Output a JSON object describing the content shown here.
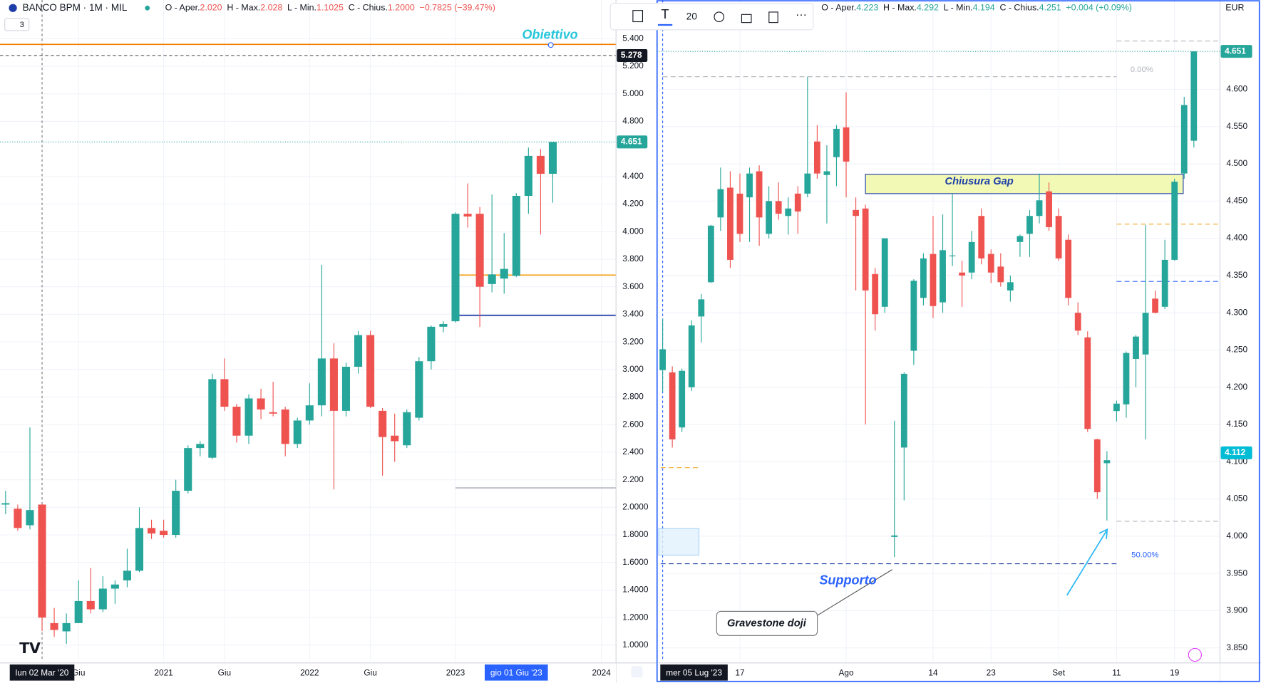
{
  "drawing_toolbar": {
    "size": "20"
  },
  "collapsed_indicators": "3",
  "chart_data": [
    {
      "type": "candlestick",
      "title": "BANCO BPM · 1M · MIL",
      "ohlc_legend": [
        {
          "label": "O - Aper.",
          "value": "2.020"
        },
        {
          "label": "H - Max.",
          "value": "2.028"
        },
        {
          "label": "L - Min.",
          "value": "1.1025"
        },
        {
          "label": "C - Chius.",
          "value": "1.2000"
        }
      ],
      "change": "−0.7825 (−39.47%)",
      "legend_color": "#ef5350",
      "up_color": "#26a69a",
      "down_color": "#ef5350",
      "open": [
        2.02,
        1.99,
        1.87,
        2.02,
        1.16,
        1.1,
        1.16,
        1.32,
        1.26,
        1.41,
        1.47,
        1.54,
        1.85,
        1.83,
        1.8,
        2.12,
        2.43,
        2.36,
        2.93,
        2.73,
        2.52,
        2.79,
        2.69,
        2.71,
        2.46,
        2.63,
        2.74,
        3.08,
        2.7,
        3.02,
        3.25,
        2.7,
        2.52,
        2.45,
        2.65,
        3.06,
        3.31,
        3.35,
        4.13,
        4.13,
        3.62,
        3.66,
        3.68,
        4.26,
        4.55,
        4.42
      ],
      "high": [
        2.12,
        2.02,
        2.58,
        2.028,
        1.27,
        1.23,
        1.47,
        1.56,
        1.5,
        1.47,
        1.7,
        2.0,
        1.91,
        1.91,
        2.2,
        2.45,
        2.48,
        2.97,
        3.08,
        2.75,
        2.82,
        2.86,
        2.91,
        2.73,
        2.65,
        2.9,
        3.76,
        3.19,
        3.05,
        3.28,
        3.28,
        2.72,
        2.68,
        2.71,
        3.09,
        3.32,
        3.35,
        4.14,
        4.35,
        4.18,
        4.27,
        3.99,
        4.28,
        4.61,
        4.6,
        4.651
      ],
      "low": [
        1.95,
        1.83,
        1.84,
        1.1025,
        1.06,
        1.01,
        1.16,
        1.23,
        1.24,
        1.3,
        1.42,
        1.53,
        1.77,
        1.78,
        1.78,
        2.1,
        2.37,
        2.35,
        2.7,
        2.47,
        2.46,
        2.64,
        2.66,
        2.37,
        2.43,
        2.6,
        2.66,
        2.13,
        2.66,
        2.97,
        2.72,
        2.23,
        2.33,
        2.43,
        2.63,
        3.0,
        3.27,
        3.34,
        4.03,
        3.31,
        3.56,
        3.55,
        3.67,
        4.13,
        3.98,
        4.21
      ],
      "close": [
        2.03,
        1.85,
        1.98,
        1.2,
        1.11,
        1.16,
        1.32,
        1.26,
        1.41,
        1.44,
        1.54,
        1.85,
        1.81,
        1.8,
        2.12,
        2.43,
        2.46,
        2.93,
        2.73,
        2.52,
        2.79,
        2.71,
        2.68,
        2.46,
        2.63,
        2.74,
        3.08,
        2.7,
        3.02,
        3.25,
        2.73,
        2.51,
        2.48,
        2.69,
        3.06,
        3.31,
        3.33,
        4.13,
        4.11,
        3.6,
        3.69,
        3.73,
        4.26,
        4.55,
        4.42,
        4.651
      ],
      "xlim": [
        -0.46,
        50.2
      ],
      "ylim": [
        0.883,
        5.681
      ],
      "yticks": [
        {
          "value": 5.4,
          "label": "5.400"
        },
        {
          "value": 5.2,
          "label": "5.200"
        },
        {
          "value": 5.0,
          "label": "5.000"
        },
        {
          "value": 4.8,
          "label": "4.800"
        },
        {
          "value": 4.4,
          "label": "4.400"
        },
        {
          "value": 4.2,
          "label": "4.200"
        },
        {
          "value": 4.0,
          "label": "4.000"
        },
        {
          "value": 3.8,
          "label": "3.800"
        },
        {
          "value": 3.6,
          "label": "3.600"
        },
        {
          "value": 3.4,
          "label": "3.400"
        },
        {
          "value": 3.2,
          "label": "3.200"
        },
        {
          "value": 3.0,
          "label": "3.000"
        },
        {
          "value": 2.8,
          "label": "2.800"
        },
        {
          "value": 2.6,
          "label": "2.600"
        },
        {
          "value": 2.4,
          "label": "2.400"
        },
        {
          "value": 2.2,
          "label": "2.200"
        },
        {
          "value": 2.0,
          "label": "2.0000"
        },
        {
          "value": 1.8,
          "label": "1.8000"
        },
        {
          "value": 1.6,
          "label": "1.6000"
        },
        {
          "value": 1.4,
          "label": "1.4000"
        },
        {
          "value": 1.2,
          "label": "1.2000"
        },
        {
          "value": 1.0,
          "label": "1.0000"
        }
      ],
      "xticks": [
        {
          "value": 6,
          "label": "Giu"
        },
        {
          "value": 13,
          "label": "2021"
        },
        {
          "value": 18,
          "label": "Giu"
        },
        {
          "value": 25,
          "label": "2022"
        },
        {
          "value": 30,
          "label": "Giu"
        },
        {
          "value": 37,
          "label": "2023"
        },
        {
          "value": 49,
          "label": "2024"
        }
      ],
      "marker_labels": [
        {
          "value": 3,
          "label": "lun 02 Mar '20",
          "color": "#131722"
        },
        {
          "value": 42,
          "label": "gio 01 Giu '23",
          "color": "#2962ff"
        }
      ],
      "crosshair": 3,
      "levels": [
        {
          "value": 5.359,
          "color": "#f57c00",
          "dash": "none"
        },
        {
          "value": 5.278,
          "color": "#555555",
          "dash": "4 3"
        },
        {
          "value": 4.651,
          "color": "#26a69a",
          "dash": "1 2"
        },
        {
          "value": 3.685,
          "color": "#f5a623",
          "dash": "none",
          "x0": 37.3
        },
        {
          "value": 3.393,
          "color": "#1e3fa8",
          "dash": "none",
          "x0": 37.3
        },
        {
          "value": 2.141,
          "color": "#b2b5be",
          "dash": "none",
          "x0": 37
        }
      ],
      "price_labels": [
        {
          "value": 5.278,
          "color": "#131722"
        },
        {
          "value": 4.651,
          "color": "#26a69a"
        }
      ],
      "annotations": {
        "target": "Obiettivo"
      }
    },
    {
      "type": "candlestick",
      "currency": "EUR",
      "ohlc_legend": [
        {
          "label": "O - Aper.",
          "value": "4.223"
        },
        {
          "label": "H - Max.",
          "value": "4.292"
        },
        {
          "label": "L - Min.",
          "value": "4.194"
        },
        {
          "label": "C - Chius.",
          "value": "4.251"
        }
      ],
      "change": "+0.004 (+0.09%)",
      "legend_color": "#26a69a",
      "up_color": "#26a69a",
      "down_color": "#ef5350",
      "open": [
        4.223,
        4.22,
        4.146,
        4.2,
        4.295,
        4.341,
        4.428,
        4.468,
        4.46,
        4.455,
        4.49,
        4.406,
        4.45,
        4.43,
        4.46,
        4.46,
        4.53,
        4.485,
        4.509,
        4.549,
        4.438,
        4.44,
        4.352,
        4.308,
        3.999,
        4.119,
        4.249,
        4.32,
        4.379,
        4.314,
        4.376,
        4.354,
        4.354,
        4.43,
        4.379,
        4.362,
        4.33,
        4.395,
        4.406,
        4.43,
        4.463,
        4.43,
        4.398,
        4.3,
        4.267,
        4.13,
        4.098,
        4.168,
        4.177,
        4.238,
        4.244,
        4.319,
        4.308,
        4.371,
        4.487,
        4.531
      ],
      "high": [
        4.292,
        4.228,
        4.225,
        4.29,
        4.325,
        4.418,
        4.495,
        4.49,
        4.487,
        4.495,
        4.498,
        4.47,
        4.475,
        4.455,
        4.47,
        4.617,
        4.552,
        4.525,
        4.552,
        4.596,
        4.455,
        4.445,
        4.36,
        4.4,
        4.155,
        4.22,
        4.345,
        4.38,
        4.43,
        4.432,
        4.46,
        4.37,
        4.41,
        4.44,
        4.385,
        4.38,
        4.35,
        4.405,
        4.438,
        4.487,
        4.475,
        4.44,
        4.405,
        4.314,
        4.275,
        4.131,
        4.114,
        4.182,
        4.248,
        4.27,
        4.418,
        4.33,
        4.398,
        4.48,
        4.59,
        4.651
      ],
      "low": [
        4.194,
        4.119,
        4.14,
        4.195,
        4.26,
        4.34,
        4.41,
        4.36,
        4.395,
        4.395,
        4.39,
        4.4,
        4.425,
        4.405,
        4.406,
        4.455,
        4.48,
        4.42,
        4.47,
        4.455,
        4.33,
        4.15,
        4.276,
        4.3,
        3.972,
        4.048,
        4.23,
        4.31,
        4.293,
        4.3,
        4.363,
        4.308,
        4.345,
        4.365,
        4.34,
        4.335,
        4.315,
        4.375,
        4.375,
        4.42,
        4.41,
        4.37,
        4.31,
        4.27,
        4.14,
        4.05,
        4.021,
        4.154,
        4.159,
        4.2,
        4.13,
        4.299,
        4.305,
        4.37,
        4.48,
        4.522
      ],
      "close": [
        4.251,
        4.13,
        4.222,
        4.283,
        4.318,
        4.417,
        4.466,
        4.371,
        4.406,
        4.487,
        4.428,
        4.45,
        4.433,
        4.44,
        4.436,
        4.487,
        4.487,
        4.49,
        4.547,
        4.503,
        4.43,
        4.33,
        4.298,
        4.4,
        4.001,
        4.218,
        4.343,
        4.373,
        4.309,
        4.384,
        4.377,
        4.35,
        4.395,
        4.373,
        4.354,
        4.341,
        4.341,
        4.403,
        4.43,
        4.451,
        4.415,
        4.373,
        4.32,
        4.276,
        4.144,
        4.059,
        4.102,
        4.178,
        4.246,
        4.268,
        4.3,
        4.3,
        4.371,
        4.476,
        4.579,
        4.651
      ],
      "xlim": [
        -0.41,
        57.7
      ],
      "ylim": [
        3.832,
        4.72
      ],
      "yticks": [
        {
          "value": 4.6,
          "label": "4.600"
        },
        {
          "value": 4.55,
          "label": "4.550"
        },
        {
          "value": 4.5,
          "label": "4.500"
        },
        {
          "value": 4.45,
          "label": "4.450"
        },
        {
          "value": 4.4,
          "label": "4.400"
        },
        {
          "value": 4.35,
          "label": "4.350"
        },
        {
          "value": 4.3,
          "label": "4.300"
        },
        {
          "value": 4.25,
          "label": "4.250"
        },
        {
          "value": 4.2,
          "label": "4.200"
        },
        {
          "value": 4.15,
          "label": "4.150"
        },
        {
          "value": 4.1,
          "label": "4.100"
        },
        {
          "value": 4.05,
          "label": "4.050"
        },
        {
          "value": 4.0,
          "label": "4.000"
        },
        {
          "value": 3.95,
          "label": "3.950"
        },
        {
          "value": 3.9,
          "label": "3.900"
        },
        {
          "value": 3.85,
          "label": "3.850"
        }
      ],
      "xticks": [
        {
          "value": 8,
          "label": "17"
        },
        {
          "value": 19,
          "label": "Ago"
        },
        {
          "value": 28,
          "label": "14"
        },
        {
          "value": 34,
          "label": "23"
        },
        {
          "value": 41,
          "label": "Set"
        },
        {
          "value": 47,
          "label": "11"
        },
        {
          "value": 53,
          "label": "19"
        }
      ],
      "marker_labels": [
        {
          "value": 0,
          "label": "mer 05 Lug '23",
          "color": "#131722"
        }
      ],
      "crosshair": 0,
      "levels": [
        {
          "value": 4.665,
          "color": "#b2b5be",
          "dash": "6 4",
          "x0": 47
        },
        {
          "value": 4.617,
          "color": "#b2b5be",
          "dash": "6 4",
          "x0": 0,
          "x1": 47
        },
        {
          "value": 4.02,
          "color": "#b2b5be",
          "dash": "6 4",
          "x0": 47
        },
        {
          "value": 4.419,
          "color": "#f5a623",
          "dash": "6 4",
          "x0": 47
        },
        {
          "value": 4.342,
          "color": "#2962ff",
          "dash": "6 4",
          "x0": 47
        },
        {
          "value": 3.963,
          "color": "#1e3fa8",
          "dash": "6 4",
          "x0": -0.2,
          "x1": 47
        },
        {
          "value": 4.092,
          "color": "#f5a623",
          "dash": "6 4",
          "x0": -0.2,
          "x1": 3.7
        },
        {
          "value": 4.651,
          "color": "#26a69a",
          "dash": "1 2"
        }
      ],
      "zones": [
        {
          "x0": 21,
          "x1": 53.9,
          "y0": 4.46,
          "y1": 4.486,
          "color": "#f0f8a8",
          "border": "#1e3fa8"
        }
      ],
      "price_labels": [
        {
          "value": 4.651,
          "color": "#26a69a"
        },
        {
          "value": 4.112,
          "color": "#00bcd4"
        }
      ],
      "annotations": {
        "gap": "Chiusura Gap",
        "support": "Supporto",
        "doji": "Gravestone doji",
        "fib_top": "0.00%",
        "fib_mid": "50.00%"
      }
    }
  ]
}
